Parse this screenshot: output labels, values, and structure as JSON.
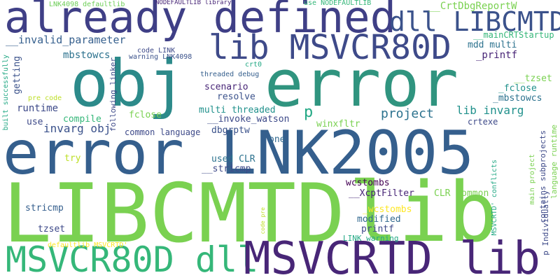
{
  "words": [
    {
      "text": "already defined",
      "color": "#3f3f86"
    },
    {
      "text": "error",
      "color": "#30947f"
    },
    {
      "text": "obj",
      "color": "#2c8a8a"
    },
    {
      "text": "error LNK2005",
      "color": "#355f8d"
    },
    {
      "text": "LIBCMTD",
      "color": "#7ad151"
    },
    {
      "text": "lib",
      "color": "#7ad151"
    },
    {
      "text": "MSVCR80D dll",
      "color": "#35b779"
    },
    {
      "text": "MSVCRTD lib",
      "color": "#482677"
    },
    {
      "text": "lib MSVCR80D",
      "color": "#3e4a89"
    },
    {
      "text": "dll LIBCMTD",
      "color": "#3b528b"
    },
    {
      "text": "__CrtDbgReportW",
      "color": "#7ad151"
    },
    {
      "text": "__mainCRTStartup",
      "color": "#35b779"
    },
    {
      "text": "mdd multi",
      "color": "#2c728e"
    },
    {
      "text": "_printf",
      "color": "#482677"
    },
    {
      "text": "__invalid_parameter",
      "color": "#355f8d"
    },
    {
      "text": "mbstowcs",
      "color": "#2c728e"
    },
    {
      "text": "getting",
      "color": "#3b528b"
    },
    {
      "text": "runtime",
      "color": "#3e4a89"
    },
    {
      "text": "compile",
      "color": "#35b779"
    },
    {
      "text": "use",
      "color": "#3e4a89"
    },
    {
      "text": "invarg obj",
      "color": "#3b528b"
    },
    {
      "text": "p",
      "color": "#22a884"
    },
    {
      "text": "project",
      "color": "#2c728e"
    },
    {
      "text": "lib invarg",
      "color": "#21918c"
    },
    {
      "text": "crtexe",
      "color": "#3e4a89"
    },
    {
      "text": "__tzset",
      "color": "#7ad151"
    },
    {
      "text": "_fclose",
      "color": "#21918c"
    },
    {
      "text": "_mbstowcs",
      "color": "#2c728e"
    },
    {
      "text": "scenario",
      "color": "#482677"
    },
    {
      "text": "resolve",
      "color": "#3b528b"
    },
    {
      "text": "multi threaded",
      "color": "#21918c"
    },
    {
      "text": "__invoke_watson",
      "color": "#3e4a89"
    },
    {
      "text": "fclose",
      "color": "#7ad151"
    },
    {
      "text": "common language",
      "color": "#3e4a89"
    },
    {
      "text": "dbgrptw",
      "color": "#3b528b"
    },
    {
      "text": "winxfltr",
      "color": "#7ad151"
    },
    {
      "text": "one",
      "color": "#31688e"
    },
    {
      "text": "used CLR",
      "color": "#2c728e"
    },
    {
      "text": "__stricmp",
      "color": "#3e4a89"
    },
    {
      "text": "try",
      "color": "#bddf26"
    },
    {
      "text": "wcstombs",
      "color": "#440154"
    },
    {
      "text": "__XcptFilter",
      "color": "#482677"
    },
    {
      "text": "_wcstombs",
      "color": "#fde725"
    },
    {
      "text": "CLR common",
      "color": "#7ad151"
    },
    {
      "text": "stricmp",
      "color": "#355f8d"
    },
    {
      "text": "modified",
      "color": "#31688e"
    },
    {
      "text": "tzset",
      "color": "#3e4a89"
    },
    {
      "text": "printf",
      "color": "#3e4a89"
    },
    {
      "text": "LINK warning",
      "color": "#22a884"
    },
    {
      "text": "threaded debug",
      "color": "#355f8d"
    },
    {
      "text": "crt0",
      "color": "#22a884"
    },
    {
      "text": "code LINK",
      "color": "#3e4a89"
    },
    {
      "text": "warning LNK4098",
      "color": "#3b528b"
    },
    {
      "text": "LNK4098 defaultlib",
      "color": "#6ece58"
    },
    {
      "text": "NODEFAULTLIB library",
      "color": "#482677"
    },
    {
      "text": "use NODEFAULTLIB",
      "color": "#35b779"
    },
    {
      "text": "pre code",
      "color": "#bddf26"
    },
    {
      "text": "defaultlib MSVCRTD'",
      "color": "#fde725"
    },
    {
      "text": "following linker",
      "color": "#3e4a89"
    },
    {
      "text": "built successfully",
      "color": "#22a884"
    },
    {
      "text": "code pre",
      "color": "#bddf26"
    },
    {
      "text": "MSVCRTD' conflicts",
      "color": "#22a884"
    },
    {
      "text": "contains subprojects",
      "color": "#3e4a89"
    },
    {
      "text": "main project",
      "color": "#7ad151"
    },
    {
      "text": "language runtime",
      "color": "#7ad151"
    },
    {
      "text": "p Individually",
      "color": "#3e4a89"
    }
  ]
}
